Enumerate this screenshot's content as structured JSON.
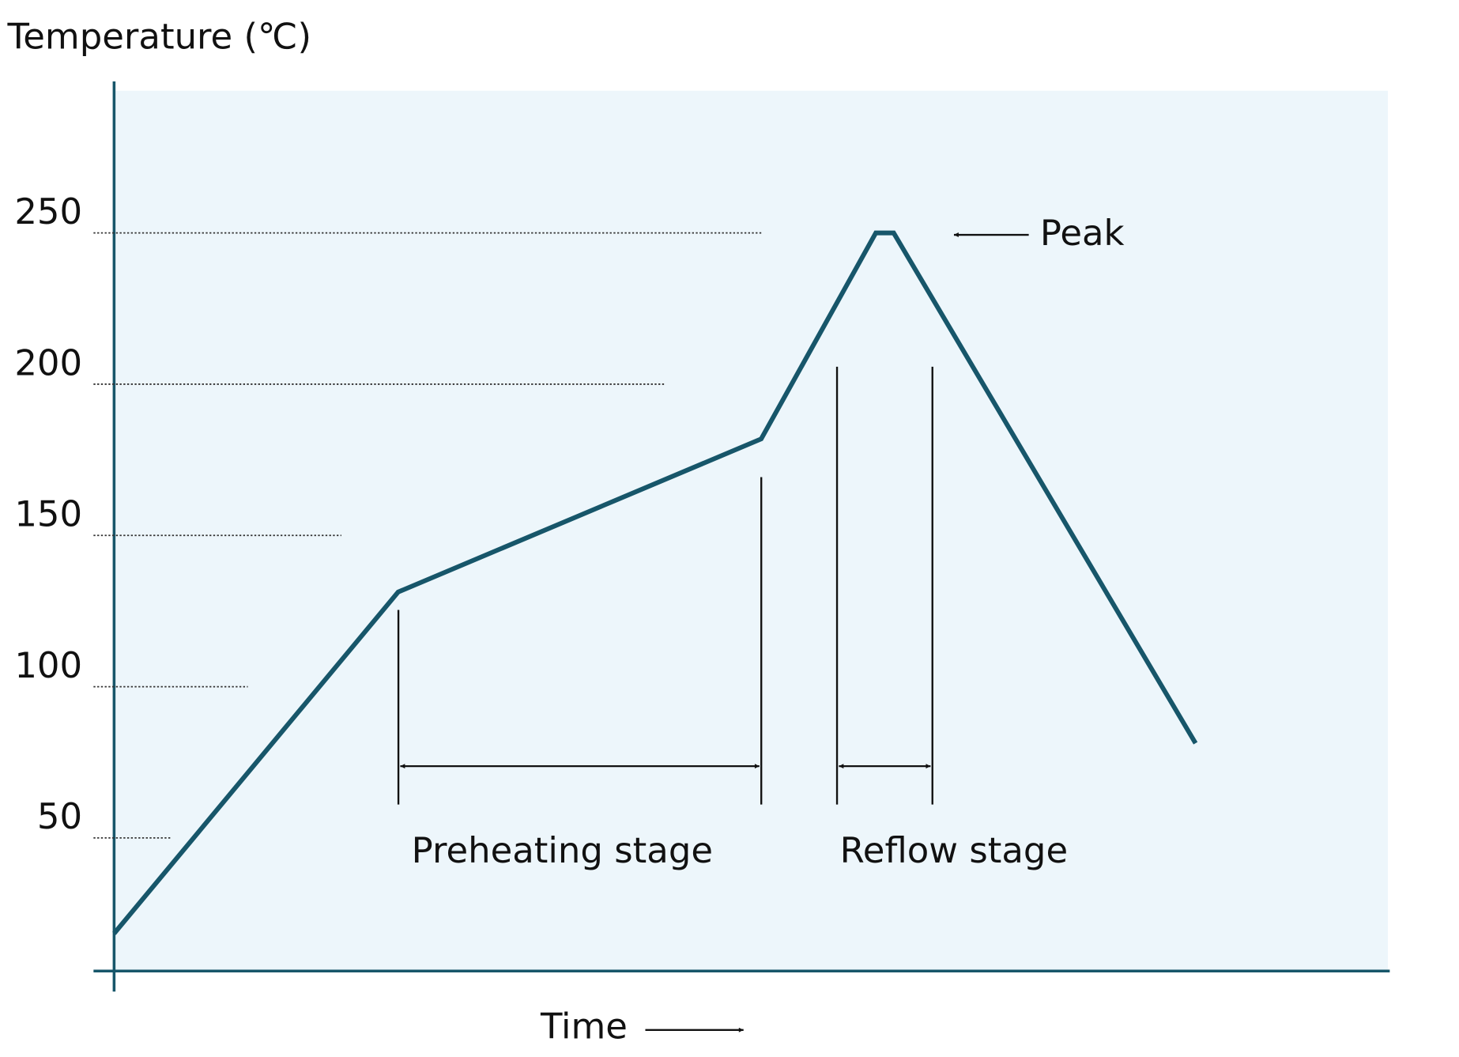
{
  "chart_data": {
    "type": "line",
    "title": "Temperature (℃)",
    "x_label": "Time",
    "x": [
      0,
      22.3,
      50.8,
      59.8,
      61.2,
      84.9
    ],
    "xlim": [
      0,
      100
    ],
    "series": [
      {
        "color": "#17566a",
        "values": [
          18.4,
          131.3,
          181.9,
          250,
          250,
          81.3
        ]
      }
    ],
    "ylim": [
      6,
      297
    ],
    "yticks": [
      50,
      100,
      150,
      200,
      250
    ],
    "grid": true,
    "annotations": {
      "peak": "Peak",
      "preheating": "Preheating stage",
      "reflow": "Reflow stage"
    }
  }
}
